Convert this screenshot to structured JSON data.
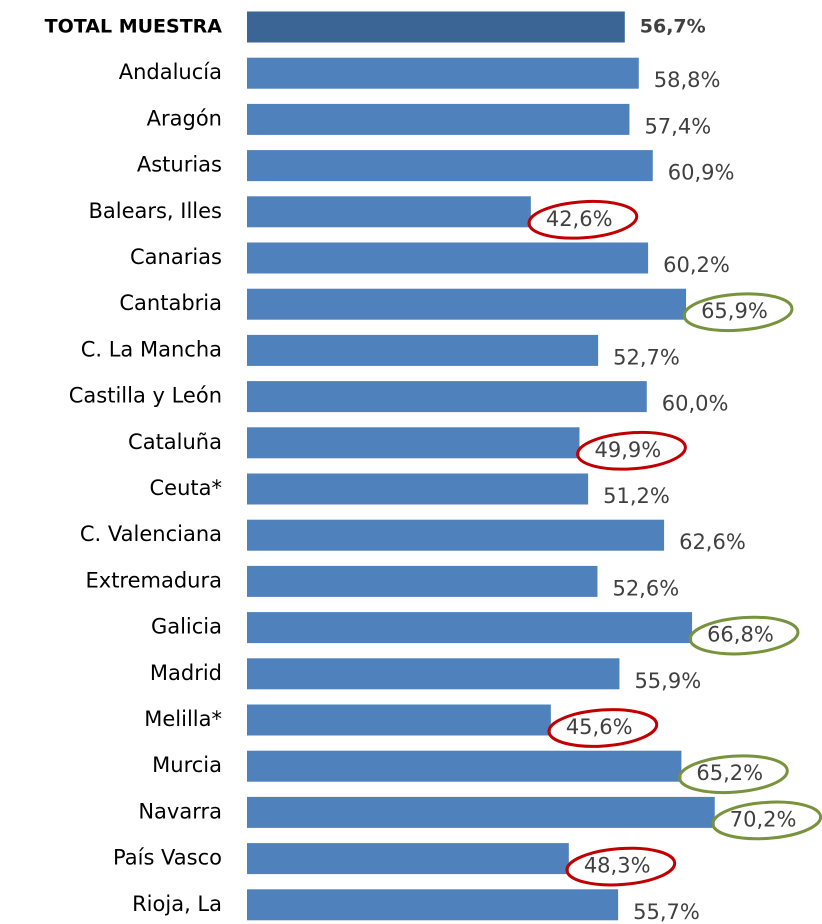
{
  "chart_data": {
    "type": "bar",
    "orientation": "horizontal",
    "categories": [
      "TOTAL MUESTRA",
      "Andalucía",
      "Aragón",
      "Asturias",
      "Balears, Illes",
      "Canarias",
      "Cantabria",
      "C. La Mancha",
      "Castilla y León",
      "Cataluña",
      "Ceuta*",
      "C. Valenciana",
      "Extremadura",
      "Galicia",
      "Madrid",
      "Melilla*",
      "Murcia",
      "Navarra",
      "País Vasco",
      "Rioja, La"
    ],
    "values": [
      56.7,
      58.8,
      57.4,
      60.9,
      42.6,
      60.2,
      65.9,
      52.7,
      60.0,
      49.9,
      51.2,
      62.6,
      52.6,
      66.8,
      55.9,
      45.6,
      65.2,
      70.2,
      48.3,
      55.7
    ],
    "value_labels": [
      "56,7%",
      "58,8%",
      "57,4%",
      "60,9%",
      "42,6%",
      "60,2%",
      "65,9%",
      "52,7%",
      "60,0%",
      "49,9%",
      "51,2%",
      "62,6%",
      "52,6%",
      "66,8%",
      "55,9%",
      "45,6%",
      "65,2%",
      "70,2%",
      "48,3%",
      "55,7%"
    ],
    "colors": [
      "#3a6595",
      "#4f81bd",
      "#4f81bd",
      "#4f81bd",
      "#4f81bd",
      "#4f81bd",
      "#4f81bd",
      "#4f81bd",
      "#4f81bd",
      "#4f81bd",
      "#4f81bd",
      "#4f81bd",
      "#4f81bd",
      "#4f81bd",
      "#4f81bd",
      "#4f81bd",
      "#4f81bd",
      "#4f81bd",
      "#4f81bd",
      "#4f81bd"
    ],
    "circle_colors": [
      null,
      null,
      null,
      null,
      "#c00000",
      null,
      "#77933c",
      null,
      null,
      "#c00000",
      null,
      null,
      null,
      "#77933c",
      null,
      "#c00000",
      "#77933c",
      "#77933c",
      "#c00000",
      null
    ],
    "xlim": [
      0,
      86
    ]
  }
}
